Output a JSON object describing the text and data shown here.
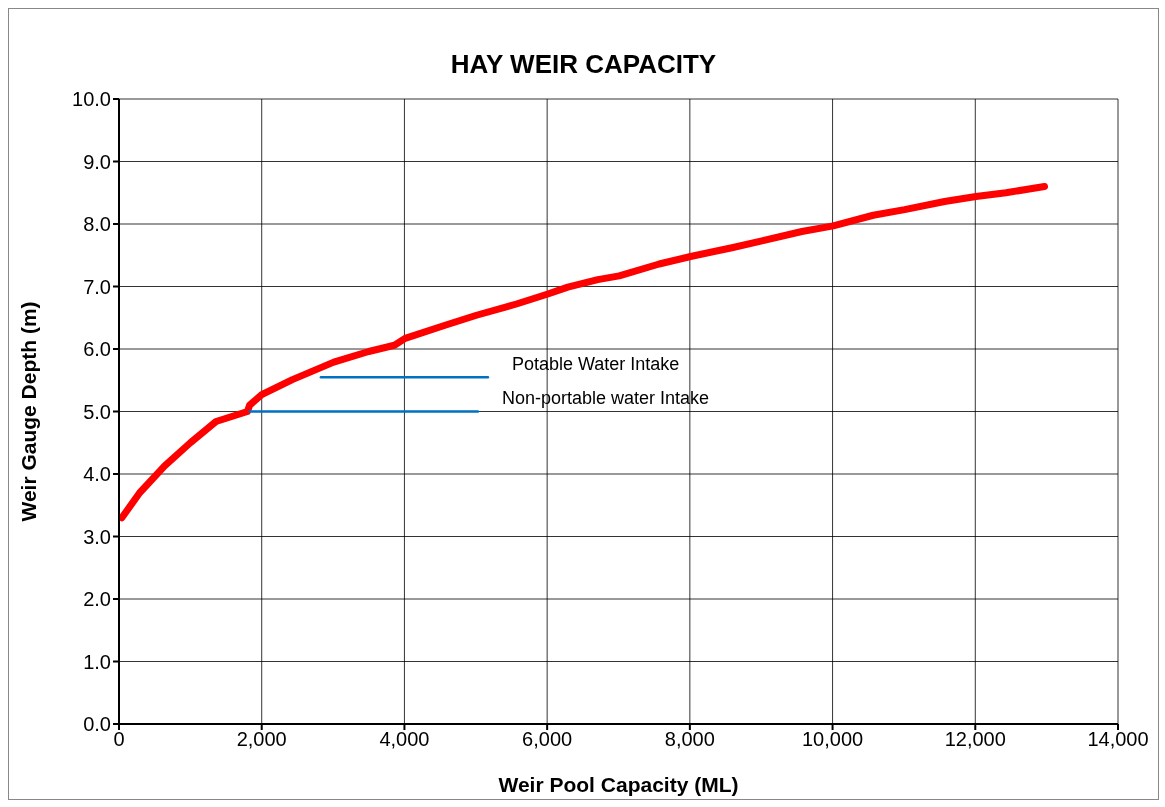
{
  "chart_data": {
    "type": "line",
    "title": "HAY WEIR CAPACITY",
    "xlabel": "Weir Pool Capacity (ML)",
    "ylabel": "Weir Gauge Depth (m)",
    "xlim": [
      0,
      14000
    ],
    "xticks": [
      {
        "value": 0,
        "label": "0"
      },
      {
        "value": 2000,
        "label": "2,000"
      },
      {
        "value": 4000,
        "label": "4,000"
      },
      {
        "value": 6000,
        "label": "6,000"
      },
      {
        "value": 8000,
        "label": "8,000"
      },
      {
        "value": 10000,
        "label": "10,000"
      },
      {
        "value": 12000,
        "label": "12,000"
      },
      {
        "value": 14000,
        "label": "14,000"
      }
    ],
    "ylim": [
      0,
      10
    ],
    "yticks": [
      {
        "value": 0,
        "label": "0.0"
      },
      {
        "value": 1,
        "label": "1.0"
      },
      {
        "value": 2,
        "label": "2.0"
      },
      {
        "value": 3,
        "label": "3.0"
      },
      {
        "value": 4,
        "label": "4.0"
      },
      {
        "value": 5,
        "label": "5.0"
      },
      {
        "value": 6,
        "label": "6.0"
      },
      {
        "value": 7,
        "label": "7.0"
      },
      {
        "value": 8,
        "label": "8.0"
      },
      {
        "value": 9,
        "label": "9.0"
      },
      {
        "value": 10,
        "label": "10.0"
      }
    ],
    "grid": true,
    "legend": false,
    "marker": "none",
    "line_style": "solid",
    "series": [
      {
        "color": "#ff0000",
        "x": [
          40,
          290,
          640,
          1000,
          1360,
          1800,
          1830,
          2000,
          2430,
          3010,
          3500,
          3860,
          4010,
          4570,
          5010,
          5570,
          6010,
          6290,
          6710,
          7010,
          7570,
          8010,
          8590,
          9010,
          9570,
          10010,
          10570,
          11010,
          11570,
          12010,
          12430,
          12970
        ],
        "values": [
          3.3,
          3.7,
          4.13,
          4.5,
          4.84,
          5.0,
          5.1,
          5.27,
          5.51,
          5.79,
          5.96,
          6.06,
          6.17,
          6.38,
          6.54,
          6.72,
          6.88,
          6.99,
          7.11,
          7.17,
          7.36,
          7.48,
          7.62,
          7.73,
          7.88,
          7.97,
          8.14,
          8.23,
          8.36,
          8.44,
          8.5,
          8.6
        ]
      },
      {
        "name": "Potable Water Intake",
        "color": "#0070c0",
        "x": [
          2830,
          5170
        ],
        "values": [
          5.55,
          5.55
        ]
      },
      {
        "name": "Non-portable water Intake",
        "color": "#0070c0",
        "x": [
          1830,
          5030
        ],
        "values": [
          5.0,
          5.0
        ]
      }
    ]
  }
}
